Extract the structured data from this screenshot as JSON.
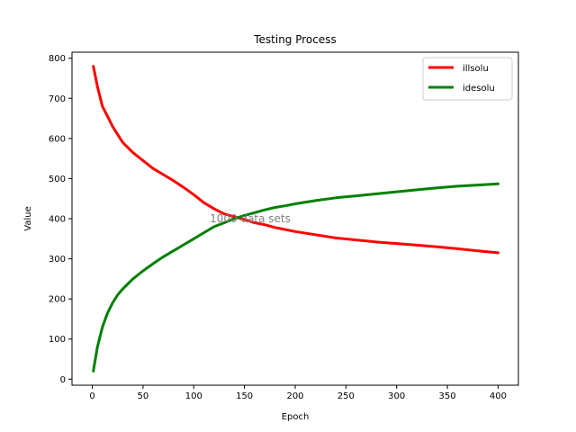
{
  "chart_data": {
    "type": "line",
    "title": "Testing Process",
    "xlabel": "Epoch",
    "ylabel": "Value",
    "xlim": [
      -20,
      420
    ],
    "ylim": [
      -15,
      815
    ],
    "xticks": [
      0,
      50,
      100,
      150,
      200,
      250,
      300,
      350,
      400
    ],
    "yticks": [
      0,
      100,
      200,
      300,
      400,
      500,
      600,
      700,
      800
    ],
    "legend": "top-right",
    "grid": false,
    "annotation": "1000 data sets",
    "series": [
      {
        "name": "illsolu",
        "color": "#ff0000",
        "x": [
          1,
          5,
          10,
          15,
          20,
          25,
          30,
          40,
          50,
          60,
          70,
          80,
          90,
          100,
          110,
          120,
          130,
          140,
          150,
          160,
          170,
          180,
          190,
          200,
          220,
          240,
          260,
          280,
          300,
          320,
          340,
          360,
          380,
          400
        ],
        "y": [
          780,
          730,
          680,
          655,
          630,
          610,
          590,
          565,
          545,
          525,
          510,
          495,
          478,
          460,
          440,
          425,
          412,
          405,
          398,
          390,
          385,
          378,
          373,
          368,
          360,
          352,
          347,
          342,
          338,
          334,
          330,
          325,
          320,
          315
        ]
      },
      {
        "name": "idesolu",
        "color": "#008000",
        "x": [
          1,
          5,
          10,
          15,
          20,
          25,
          30,
          40,
          50,
          60,
          70,
          80,
          90,
          100,
          110,
          120,
          130,
          140,
          150,
          160,
          170,
          180,
          190,
          200,
          220,
          240,
          260,
          280,
          300,
          320,
          340,
          360,
          380,
          400
        ],
        "y": [
          20,
          80,
          130,
          165,
          190,
          210,
          225,
          250,
          270,
          288,
          305,
          320,
          335,
          350,
          365,
          380,
          390,
          400,
          408,
          415,
          422,
          428,
          432,
          437,
          445,
          452,
          457,
          462,
          467,
          472,
          477,
          481,
          484,
          487
        ]
      }
    ]
  }
}
